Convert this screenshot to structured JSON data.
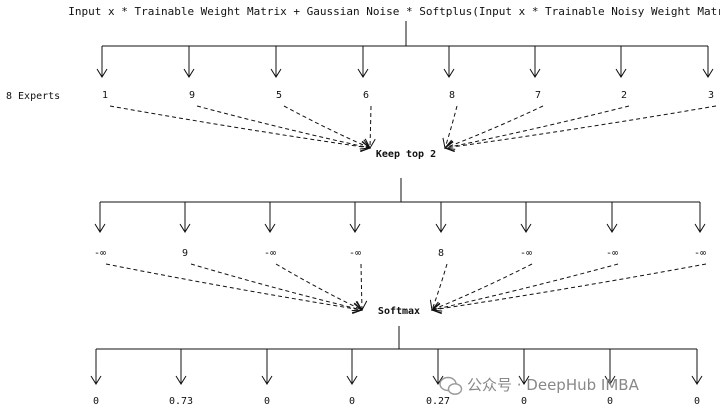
{
  "formula": "Input x * Trainable Weight Matrix + Gaussian Noise * Softplus(Input x * Trainable Noisy Weight Matrix)",
  "experts_label": "8 Experts",
  "expert_scores": [
    "1",
    "9",
    "5",
    "6",
    "8",
    "7",
    "2",
    "3"
  ],
  "topk_label": "Keep top 2",
  "masked_scores": [
    "-∞",
    "9",
    "-∞",
    "-∞",
    "8",
    "-∞",
    "-∞",
    "-∞"
  ],
  "softmax_label": "Softmax",
  "gate_outputs": [
    "0",
    "0.73",
    "0",
    "0",
    "0.27",
    "0",
    "0",
    "0"
  ],
  "watermark": "公众号 · DeepHub IMBA",
  "colors": {
    "ink": "#111111",
    "watermark": "#888888"
  },
  "icons": [
    "arrow-down-icon",
    "dashed-arrow-icon",
    "wechat-logo-icon"
  ]
}
